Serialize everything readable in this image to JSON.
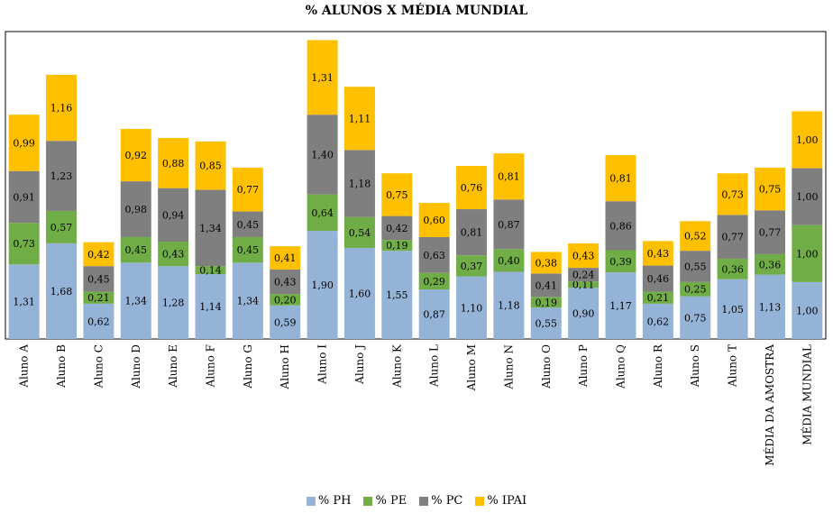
{
  "chart_data": {
    "type": "bar",
    "stacked": true,
    "title": "% ALUNOS X MÉDIA MUNDIAL",
    "categories": [
      "Aluno A",
      "Aluno B",
      "Aluno C",
      "Aluno D",
      "Aluno E",
      "Aluno F",
      "Aluno G",
      "Aluno H",
      "Aluno I",
      "Aluno J",
      "Aluno K",
      "Aluno L",
      "Aluno M",
      "Aluno N",
      "Aluno O",
      "Aluno P",
      "Aluno Q",
      "Aluno R",
      "Aluno S",
      "Aluno T",
      "MÉDIA DA AMOSTRA",
      "MÉDIA MUNDIAL"
    ],
    "series": [
      {
        "name": "% PH",
        "color": "#95b3d7",
        "values": [
          1.31,
          1.68,
          0.62,
          1.34,
          1.28,
          1.14,
          1.34,
          0.59,
          1.9,
          1.6,
          1.55,
          0.87,
          1.1,
          1.18,
          0.55,
          0.9,
          1.17,
          0.62,
          0.75,
          1.05,
          1.13,
          1.0
        ],
        "labels": [
          "1,31",
          "1,68",
          "0,62",
          "1,34",
          "1,28",
          "1,14",
          "1,34",
          "0,59",
          "1,90",
          "1,60",
          "1,55",
          "0,87",
          "1,10",
          "1,18",
          "0,55",
          "0,90",
          "1,17",
          "0,62",
          "0,75",
          "1,05",
          "1,13",
          "1,00"
        ]
      },
      {
        "name": "% PE",
        "color": "#70ad47",
        "values": [
          0.73,
          0.57,
          0.21,
          0.45,
          0.43,
          0.14,
          0.45,
          0.2,
          0.64,
          0.54,
          0.19,
          0.29,
          0.37,
          0.4,
          0.19,
          0.11,
          0.39,
          0.21,
          0.25,
          0.36,
          0.36,
          1.0
        ],
        "labels": [
          "0,73",
          "0,57",
          "0,21",
          "0,45",
          "0,43",
          "0,14",
          "0,45",
          "0,20",
          "0,64",
          "0,54",
          "0,19",
          "0,29",
          "0,37",
          "0,40",
          "0,19",
          "0,11",
          "0,39",
          "0,21",
          "0,25",
          "0,36",
          "0,36",
          "1,00"
        ]
      },
      {
        "name": "% PC",
        "color": "#7f7f7f",
        "values": [
          0.91,
          1.23,
          0.45,
          0.98,
          0.94,
          1.34,
          0.45,
          0.43,
          1.4,
          1.18,
          0.42,
          0.63,
          0.81,
          0.87,
          0.41,
          0.24,
          0.86,
          0.46,
          0.55,
          0.77,
          0.77,
          1.0
        ],
        "labels": [
          "0,91",
          "1,23",
          "0,45",
          "0,98",
          "0,94",
          "1,34",
          "0,45",
          "0,43",
          "1,40",
          "1,18",
          "0,42",
          "0,63",
          "0,81",
          "0,87",
          "0,41",
          "0,24",
          "0,86",
          "0,46",
          "0,55",
          "0,77",
          "0,77",
          "1,00"
        ]
      },
      {
        "name": "% IPAI",
        "color": "#ffc000",
        "values": [
          0.99,
          1.16,
          0.42,
          0.92,
          0.88,
          0.85,
          0.77,
          0.41,
          1.31,
          1.11,
          0.75,
          0.6,
          0.76,
          0.81,
          0.38,
          0.43,
          0.81,
          0.43,
          0.52,
          0.73,
          0.75,
          1.0
        ],
        "labels": [
          "0,99",
          "1,16",
          "0,42",
          "0,92",
          "0,88",
          "0,85",
          "0,77",
          "0,41",
          "1,31",
          "1,11",
          "0,75",
          "0,60",
          "0,76",
          "0,81",
          "0,38",
          "0,43",
          "0,81",
          "0,43",
          "0,52",
          "0,73",
          "0,75",
          "1,00"
        ]
      }
    ],
    "ylim": [
      0,
      5.4
    ],
    "grid": false,
    "legend_position": "bottom"
  }
}
